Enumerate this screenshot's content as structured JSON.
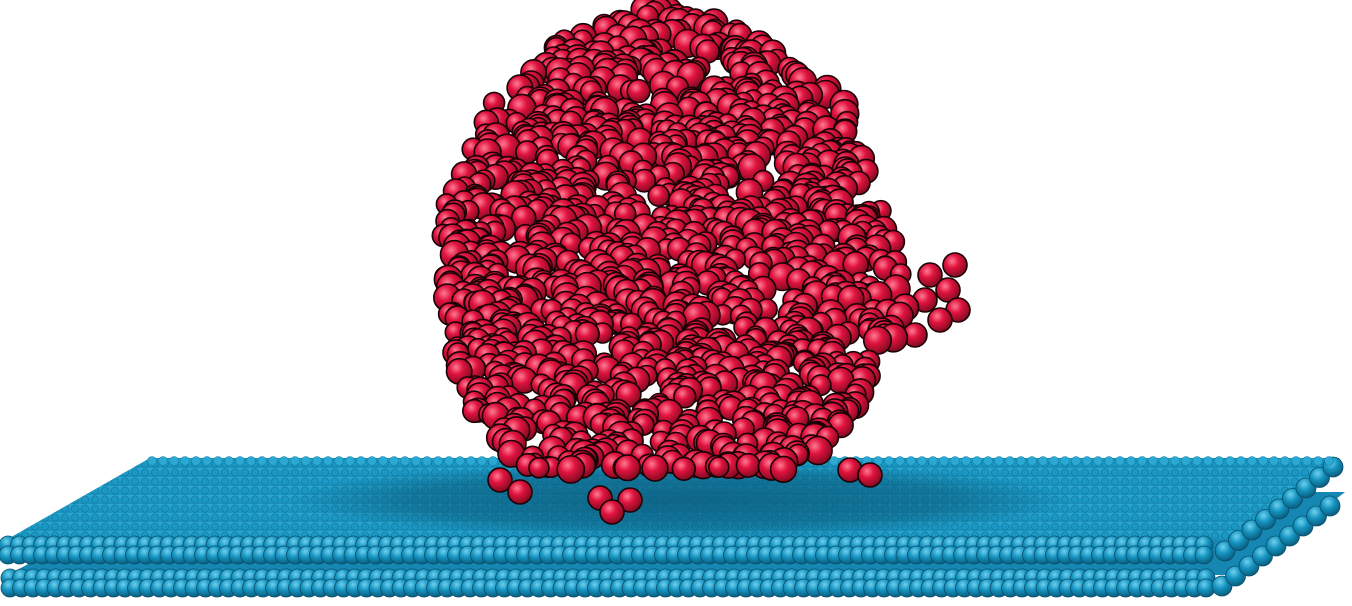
{
  "scene": {
    "background_color": "#ffffff",
    "protein": {
      "name": "protein-globule",
      "atom_color": "#e0133f",
      "atom_highlight": "#ff6b86",
      "atom_shadow": "#8a0a22",
      "outline_color": "#1a0206"
    },
    "substrate": {
      "name": "bilayer-sheet",
      "layers": 2,
      "atom_color": "#1493bf",
      "atom_highlight": "#5fc6e6",
      "atom_shadow": "#0b5f80",
      "shadow_color": "#0a5a78"
    }
  }
}
